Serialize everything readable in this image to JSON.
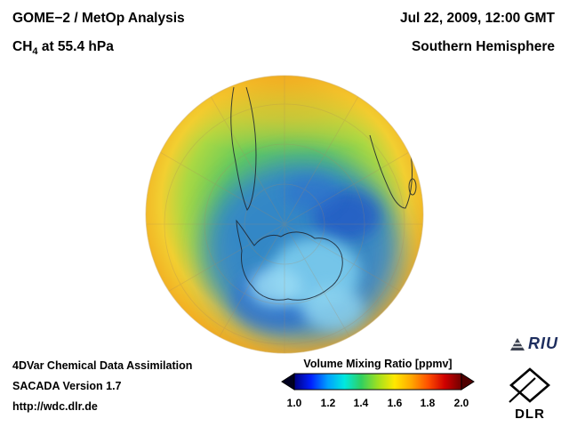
{
  "header": {
    "title": "GOME−2 / MetOp Analysis",
    "subtitle_prefix": "CH",
    "subtitle_sub": "4",
    "subtitle_suffix": " at 55.4 hPa",
    "datetime": "Jul 22, 2009, 12:00 GMT",
    "region": "Southern Hemisphere"
  },
  "footer": {
    "line1": "4DVar Chemical Data Assimilation",
    "line2": "SACADA Version 1.7",
    "line3": "http://wdc.dlr.de"
  },
  "colorbar": {
    "title": "Volume Mixing Ratio [ppmv]",
    "ticks": [
      "1.0",
      "1.2",
      "1.4",
      "1.6",
      "1.8",
      "2.0"
    ],
    "min": 1.0,
    "max": 2.0,
    "colors": [
      "#000080",
      "#0020ff",
      "#00a0ff",
      "#00e8e0",
      "#30d060",
      "#a0e020",
      "#ffe800",
      "#ffa800",
      "#ff5000",
      "#d00000",
      "#700000"
    ],
    "left_arrow_color": "#000020",
    "right_arrow_color": "#500000"
  },
  "logos": {
    "riu_label": "RIU",
    "dlr_label": "DLR"
  },
  "chart_data": {
    "type": "heatmap",
    "title": "GOME-2 / MetOp Analysis — CH4 at 55.4 hPa",
    "datetime": "Jul 22, 2009, 12:00 GMT",
    "projection": "orthographic, Southern Hemisphere (South Pole centered)",
    "variable": "CH4 volume mixing ratio",
    "units": "ppmv",
    "colorbar_range": [
      1.0,
      2.0
    ],
    "colorbar_ticks": [
      1.0,
      1.2,
      1.4,
      1.6,
      1.8,
      2.0
    ],
    "legend_position": "bottom-center",
    "regions": [
      {
        "area": "Antarctic polar vortex core (offset off-pole toward Atlantic/Indian sector)",
        "approx_value": 1.1,
        "color": "dark blue"
      },
      {
        "area": "inner vortex light patches near pole",
        "approx_value": 1.25,
        "color": "light blue"
      },
      {
        "area": "vortex edge ring",
        "approx_value": 1.35,
        "color": "cyan"
      },
      {
        "area": "mid-latitude surf zone (South America / Africa sector)",
        "approx_value": 1.45,
        "color": "green"
      },
      {
        "area": "subtropical limb of hemisphere disk",
        "approx_value": 1.65,
        "color": "yellow"
      },
      {
        "area": "tropical limb at top of disk",
        "approx_value": 1.75,
        "color": "orange"
      }
    ],
    "map_features": [
      "South America southern cone outline",
      "Southern Africa outline",
      "Madagascar",
      "Antarctica outline",
      "latitude/longitude graticule"
    ]
  }
}
